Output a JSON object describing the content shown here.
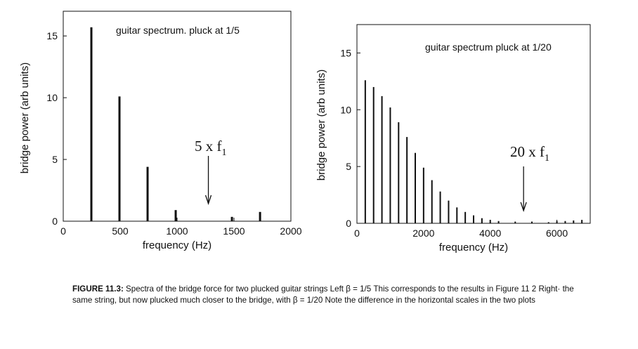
{
  "chart_data": [
    {
      "type": "bar",
      "title": "guitar spectrum. pluck at 1/5",
      "xlabel": "frequency (Hz)",
      "ylabel": "bridge power (arb units)",
      "xlim": [
        0,
        2000
      ],
      "ylim": [
        0,
        17
      ],
      "xticks": [
        0,
        500,
        1000,
        1500,
        2000
      ],
      "yticks": [
        0,
        5,
        10,
        15
      ],
      "grid": false,
      "x": [
        247,
        494,
        741,
        988,
        1482,
        1729
      ],
      "values": [
        15.7,
        10.1,
        4.4,
        0.9,
        0.35,
        0.75
      ],
      "annotation": {
        "text": "5 x f",
        "subscript": "1",
        "x": 1275
      }
    },
    {
      "type": "bar",
      "title": "guitar spectrum  pluck at 1/20",
      "xlabel": "frequency (Hz)",
      "ylabel": "bridge power (arb units)",
      "xlim": [
        0,
        7000
      ],
      "ylim": [
        0,
        17.5
      ],
      "xticks": [
        0,
        2000,
        4000,
        6000
      ],
      "yticks": [
        0,
        5,
        10,
        15
      ],
      "grid": false,
      "x": [
        250,
        500,
        750,
        1000,
        1250,
        1500,
        1750,
        2000,
        2250,
        2500,
        2750,
        3000,
        3250,
        3500,
        3750,
        4000,
        4250,
        4750,
        5250,
        5750,
        6000,
        6250,
        6500,
        6750
      ],
      "values": [
        12.6,
        12.0,
        11.2,
        10.2,
        8.9,
        7.6,
        6.2,
        4.9,
        3.8,
        2.8,
        2.0,
        1.4,
        1.0,
        0.7,
        0.45,
        0.3,
        0.2,
        0.15,
        0.15,
        0.1,
        0.2,
        0.2,
        0.25,
        0.3
      ],
      "annotation": {
        "text": "20 x f",
        "subscript": "1",
        "x": 5000
      }
    }
  ],
  "caption": {
    "label": "FIGURE 11.3:",
    "text": " Spectra of the bridge force for two plucked guitar strings   Left  β = 1/5   This corresponds to the results in Figure 11 2  Right· the same string, but now plucked much closer to the bridge, with β = 1/20  Note the difference in the horizontal scales in the two plots"
  }
}
